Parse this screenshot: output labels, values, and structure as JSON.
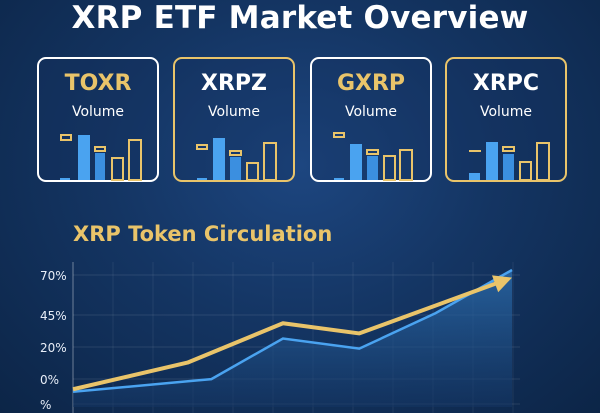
{
  "title": "XRP ETF Market Overview",
  "cards": [
    {
      "ticker": "TOXR",
      "sub": "Volume",
      "border_color": "#ffffff",
      "ticker_color": "#e9c46a"
    },
    {
      "ticker": "XRPZ",
      "sub": "Volume",
      "border_color": "#e9c46a",
      "ticker_color": "#ffffff"
    },
    {
      "ticker": "GXRP",
      "sub": "Volume",
      "border_color": "#ffffff",
      "ticker_color": "#e9c46a"
    },
    {
      "ticker": "XRPC",
      "sub": "Volume",
      "border_color": "#e9c46a",
      "ticker_color": "#ffffff"
    }
  ],
  "colors": {
    "gold": "#e9c46a",
    "blue": "#4aa3f0",
    "light_blue": "#5bb0f5",
    "area_top": "#2d6fb0"
  },
  "chart_data": {
    "type": "line",
    "title": "XRP Token Circulation",
    "y_ticks": [
      "70%",
      "45%",
      "20%",
      "0%",
      "%"
    ],
    "series": [
      {
        "values": [
          -6,
          15,
          46,
          38,
          82
        ],
        "color": "#e9c46a",
        "arrow": true
      },
      {
        "values": [
          -8,
          2,
          34,
          26,
          54,
          88
        ],
        "color": "#4aa3f0",
        "area": true
      }
    ],
    "x_points_gold": [
      0,
      1.2,
      2.2,
      3.0,
      4.6
    ],
    "x_points_blue": [
      0,
      1.45,
      2.2,
      3.0,
      3.8,
      4.6
    ],
    "ylim": [
      -20,
      88
    ],
    "grid": true
  }
}
